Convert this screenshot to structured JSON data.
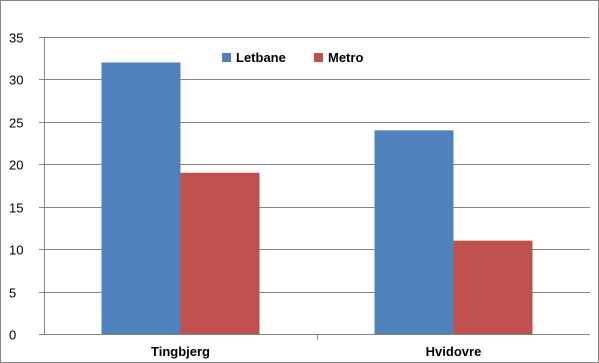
{
  "chart_data": {
    "type": "bar",
    "categories": [
      "Tingbjerg",
      "Hvidovre"
    ],
    "series": [
      {
        "name": "Letbane",
        "values": [
          32,
          24
        ],
        "color": "#4f81bd"
      },
      {
        "name": "Metro",
        "values": [
          19,
          11
        ],
        "color": "#c0504d"
      }
    ],
    "title": "",
    "xlabel": "",
    "ylabel": "",
    "ylim": [
      0,
      35
    ],
    "yticks": [
      0,
      5,
      10,
      15,
      20,
      25,
      30,
      35
    ],
    "grid": true,
    "legend": "top-center",
    "colors": {
      "grid": "#868686",
      "axis": "#868686",
      "border": "#868686"
    }
  }
}
